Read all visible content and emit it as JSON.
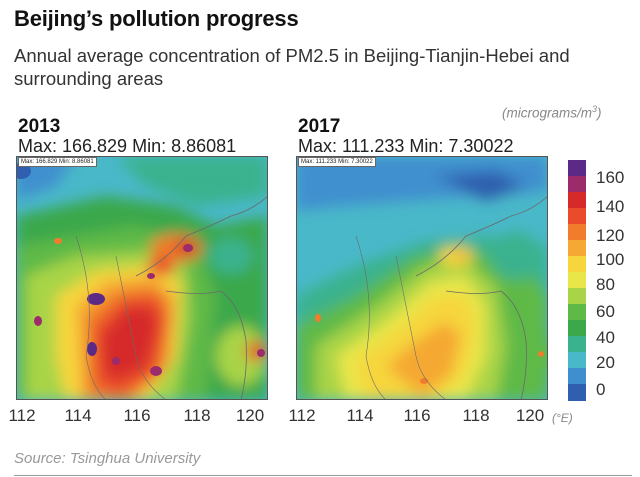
{
  "header": {
    "title": "Beijing’s pollution progress",
    "subtitle": "Annual average concentration of PM2.5 in Beijing-Tianjin-Hebei and surrounding areas",
    "unit_label_text": "(micrograms/m",
    "unit_label_sup": "3",
    "unit_label_close": ")"
  },
  "panels": [
    {
      "year": "2013",
      "stats_text": "Max: 166.829  Min: 8.86081",
      "inset_text": "Max: 166.829 Min: 8.86081",
      "max": 166.829,
      "min": 8.86081
    },
    {
      "year": "2017",
      "stats_text": "Max: 111.233  Min: 7.30022",
      "inset_text": "Max: 111.233 Min: 7.30022",
      "max": 111.233,
      "min": 7.30022
    }
  ],
  "x_axis": {
    "ticks": [
      "112",
      "114",
      "116",
      "118",
      "120"
    ],
    "unit": "(°E)"
  },
  "colorbar": {
    "ticks": [
      "160",
      "140",
      "120",
      "100",
      "80",
      "60",
      "40",
      "20",
      "0"
    ],
    "colors": [
      "#5b2a86",
      "#9c2b6b",
      "#d62a2a",
      "#ea4b2a",
      "#f07c2c",
      "#f5a833",
      "#f6d63c",
      "#e9e64a",
      "#a9d447",
      "#5fb947",
      "#3aa84b",
      "#3ab28e",
      "#49b8c9",
      "#3f8fcf",
      "#2f5fae"
    ]
  },
  "source": "Source: Tsinghua University"
}
